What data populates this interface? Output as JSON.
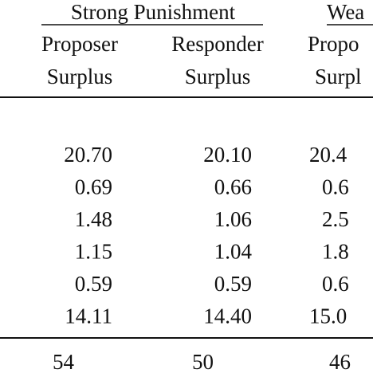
{
  "table": {
    "groups": [
      "Strong Punishment",
      "Wea"
    ],
    "columns": [
      [
        "Proposer",
        "Surplus"
      ],
      [
        "Responder",
        "Surplus"
      ],
      [
        "Propo",
        "Surpl"
      ]
    ],
    "rows": [
      [
        "20.70",
        "20.10",
        "20.4"
      ],
      [
        "0.69",
        "0.66",
        "0.6"
      ],
      [
        "1.48",
        "1.06",
        "2.5"
      ],
      [
        "1.15",
        "1.04",
        "1.8"
      ],
      [
        "0.59",
        "0.59",
        "0.6"
      ],
      [
        "14.11",
        "14.40",
        "15.0"
      ]
    ],
    "footer": [
      "54",
      "50",
      "46"
    ]
  }
}
